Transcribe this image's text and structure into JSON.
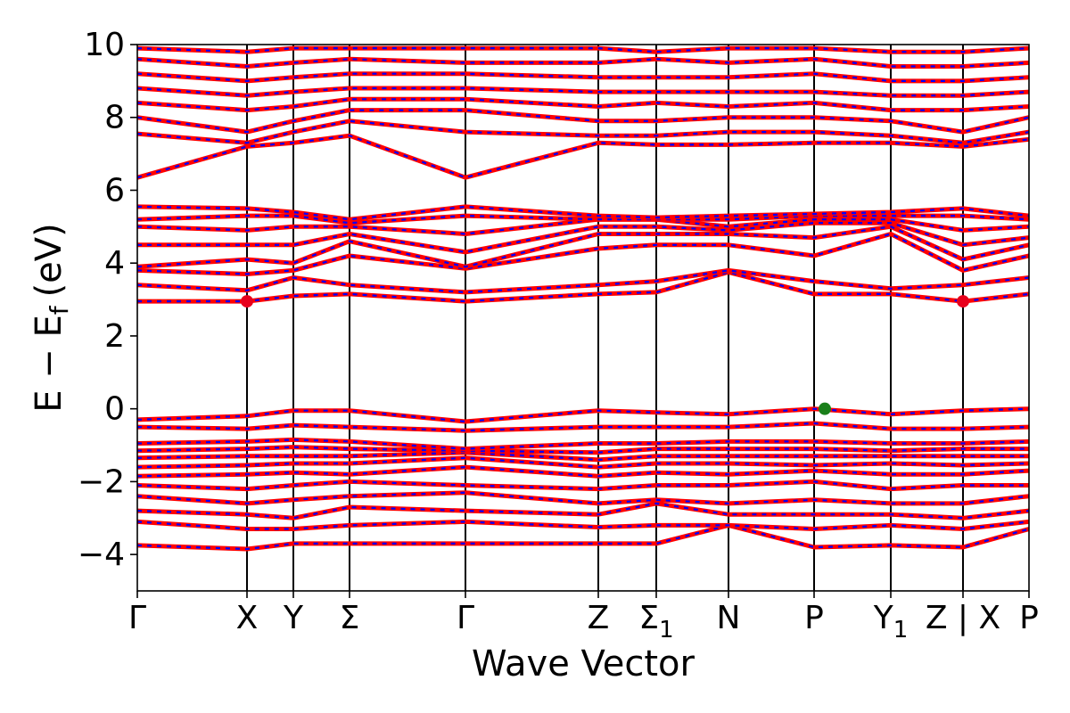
{
  "chart_data": {
    "type": "line",
    "xlabel": "Wave Vector",
    "ylabel": "E − E",
    "ylabel_sub": "f",
    "ylabel_unit": "(eV)",
    "ylim": [
      -5,
      10
    ],
    "yticks": [
      -4,
      -2,
      0,
      2,
      4,
      6,
      8,
      10
    ],
    "ytick_labels": [
      "−4",
      "−2",
      "0",
      "2",
      "4",
      "6",
      "8",
      "10"
    ],
    "xlim": [
      0,
      1
    ],
    "kpoints": [
      {
        "x": 0.0,
        "label": "Γ"
      },
      {
        "x": 0.123,
        "label": "X"
      },
      {
        "x": 0.175,
        "label": "Y"
      },
      {
        "x": 0.238,
        "label": "Σ"
      },
      {
        "x": 0.368,
        "label": "Γ"
      },
      {
        "x": 0.517,
        "label": "Z"
      },
      {
        "x": 0.582,
        "label": "Σ",
        "sub": "1"
      },
      {
        "x": 0.663,
        "label": "N"
      },
      {
        "x": 0.759,
        "label": "P"
      },
      {
        "x": 0.845,
        "label": "Y",
        "sub": "1"
      },
      {
        "x": 0.926,
        "label": "Z | X"
      },
      {
        "x": 1.0,
        "label": "P"
      }
    ],
    "line_colors": {
      "primary": "#ff0000",
      "dash": "#0000ff"
    },
    "markers": [
      {
        "x": 0.123,
        "y": 2.95,
        "color": "#e8001c"
      },
      {
        "x": 0.926,
        "y": 2.95,
        "color": "#e8001c"
      },
      {
        "x": 0.771,
        "y": 0.0,
        "color": "#1a7f1a"
      }
    ],
    "series": [
      {
        "x": [
          0,
          0.123,
          0.175,
          0.238,
          0.368,
          0.517,
          0.582,
          0.663,
          0.759,
          0.845,
          0.926,
          1.0
        ],
        "y": [
          -3.75,
          -3.85,
          -3.7,
          -3.7,
          -3.7,
          -3.7,
          -3.7,
          -3.2,
          -3.8,
          -3.75,
          -3.8,
          -3.3
        ]
      },
      {
        "x": [
          0,
          0.123,
          0.175,
          0.238,
          0.368,
          0.517,
          0.582,
          0.663,
          0.759,
          0.845,
          0.926,
          1.0
        ],
        "y": [
          -3.1,
          -3.3,
          -3.3,
          -3.2,
          -3.1,
          -3.25,
          -3.2,
          -3.2,
          -3.3,
          -3.2,
          -3.3,
          -3.1
        ]
      },
      {
        "x": [
          0,
          0.123,
          0.175,
          0.238,
          0.368,
          0.517,
          0.582,
          0.663,
          0.759,
          0.845,
          0.926,
          1.0
        ],
        "y": [
          -2.8,
          -2.9,
          -3.0,
          -2.7,
          -2.8,
          -2.9,
          -2.6,
          -2.9,
          -2.9,
          -2.9,
          -3.0,
          -2.8
        ]
      },
      {
        "x": [
          0,
          0.123,
          0.175,
          0.238,
          0.368,
          0.517,
          0.582,
          0.663,
          0.759,
          0.845,
          0.926,
          1.0
        ],
        "y": [
          -2.4,
          -2.6,
          -2.5,
          -2.4,
          -2.3,
          -2.6,
          -2.5,
          -2.6,
          -2.5,
          -2.6,
          -2.6,
          -2.4
        ]
      },
      {
        "x": [
          0,
          0.123,
          0.175,
          0.238,
          0.368,
          0.517,
          0.582,
          0.663,
          0.759,
          0.845,
          0.926,
          1.0
        ],
        "y": [
          -2.1,
          -2.2,
          -2.1,
          -2.0,
          -2.1,
          -2.2,
          -2.1,
          -2.1,
          -2.0,
          -2.2,
          -2.1,
          -2.1
        ]
      },
      {
        "x": [
          0,
          0.123,
          0.175,
          0.238,
          0.368,
          0.517,
          0.582,
          0.663,
          0.759,
          0.845,
          0.926,
          1.0
        ],
        "y": [
          -1.85,
          -1.8,
          -1.75,
          -1.8,
          -1.6,
          -1.85,
          -1.75,
          -1.8,
          -1.7,
          -1.8,
          -1.8,
          -1.7
        ]
      },
      {
        "x": [
          0,
          0.123,
          0.175,
          0.238,
          0.368,
          0.517,
          0.582,
          0.663,
          0.759,
          0.845,
          0.926,
          1.0
        ],
        "y": [
          -1.6,
          -1.55,
          -1.5,
          -1.5,
          -1.35,
          -1.6,
          -1.5,
          -1.5,
          -1.55,
          -1.5,
          -1.55,
          -1.5
        ]
      },
      {
        "x": [
          0,
          0.123,
          0.175,
          0.238,
          0.368,
          0.517,
          0.582,
          0.663,
          0.759,
          0.845,
          0.926,
          1.0
        ],
        "y": [
          -1.35,
          -1.3,
          -1.3,
          -1.3,
          -1.2,
          -1.4,
          -1.3,
          -1.3,
          -1.3,
          -1.3,
          -1.3,
          -1.3
        ]
      },
      {
        "x": [
          0,
          0.123,
          0.175,
          0.238,
          0.368,
          0.517,
          0.582,
          0.663,
          0.759,
          0.845,
          0.926,
          1.0
        ],
        "y": [
          -1.15,
          -1.1,
          -1.05,
          -1.1,
          -1.15,
          -1.2,
          -1.1,
          -1.1,
          -1.1,
          -1.15,
          -1.1,
          -1.1
        ]
      },
      {
        "x": [
          0,
          0.123,
          0.175,
          0.238,
          0.368,
          0.517,
          0.582,
          0.663,
          0.759,
          0.845,
          0.926,
          1.0
        ],
        "y": [
          -0.95,
          -0.9,
          -0.85,
          -0.9,
          -1.1,
          -0.95,
          -0.95,
          -0.9,
          -0.9,
          -0.95,
          -0.95,
          -0.9
        ]
      },
      {
        "x": [
          0,
          0.123,
          0.175,
          0.238,
          0.368,
          0.517,
          0.582,
          0.663,
          0.759,
          0.845,
          0.926,
          1.0
        ],
        "y": [
          -0.5,
          -0.55,
          -0.45,
          -0.5,
          -0.6,
          -0.5,
          -0.5,
          -0.5,
          -0.4,
          -0.55,
          -0.55,
          -0.5
        ]
      },
      {
        "x": [
          0,
          0.123,
          0.175,
          0.238,
          0.368,
          0.517,
          0.582,
          0.663,
          0.759,
          0.845,
          0.926,
          1.0
        ],
        "y": [
          -0.3,
          -0.2,
          -0.05,
          -0.05,
          -0.35,
          -0.05,
          -0.1,
          -0.15,
          0.0,
          -0.15,
          -0.05,
          0.0
        ]
      },
      {
        "x": [
          0,
          0.123,
          0.175,
          0.238,
          0.368,
          0.517,
          0.582,
          0.663,
          0.759,
          0.845,
          0.926,
          1.0
        ],
        "y": [
          2.95,
          2.95,
          3.1,
          3.15,
          2.95,
          3.15,
          3.2,
          3.75,
          3.15,
          3.15,
          2.95,
          3.15
        ]
      },
      {
        "x": [
          0,
          0.123,
          0.175,
          0.238,
          0.368,
          0.517,
          0.582,
          0.663,
          0.759,
          0.845,
          0.926,
          1.0
        ],
        "y": [
          3.4,
          3.25,
          3.6,
          3.4,
          3.2,
          3.4,
          3.5,
          3.8,
          3.5,
          3.3,
          3.4,
          3.6
        ]
      },
      {
        "x": [
          0,
          0.123,
          0.175,
          0.238,
          0.368,
          0.517,
          0.582,
          0.663,
          0.759,
          0.845,
          0.926,
          1.0
        ],
        "y": [
          3.8,
          3.7,
          3.8,
          4.2,
          3.85,
          4.4,
          4.5,
          4.5,
          4.2,
          4.8,
          3.8,
          4.2
        ]
      },
      {
        "x": [
          0,
          0.123,
          0.175,
          0.238,
          0.368,
          0.517,
          0.582,
          0.663,
          0.759,
          0.845,
          0.926,
          1.0
        ],
        "y": [
          3.9,
          4.1,
          4.0,
          4.6,
          3.9,
          4.8,
          4.8,
          4.8,
          4.7,
          5.0,
          4.1,
          4.5
        ]
      },
      {
        "x": [
          0,
          0.123,
          0.175,
          0.238,
          0.368,
          0.517,
          0.582,
          0.663,
          0.759,
          0.845,
          0.926,
          1.0
        ],
        "y": [
          4.5,
          4.5,
          4.5,
          4.8,
          4.3,
          5.0,
          5.0,
          4.9,
          5.1,
          5.1,
          4.5,
          4.7
        ]
      },
      {
        "x": [
          0,
          0.123,
          0.175,
          0.238,
          0.368,
          0.517,
          0.582,
          0.663,
          0.759,
          0.845,
          0.926,
          1.0
        ],
        "y": [
          5.0,
          4.9,
          5.0,
          5.0,
          4.8,
          5.2,
          5.2,
          5.0,
          5.2,
          5.2,
          4.9,
          5.0
        ]
      },
      {
        "x": [
          0,
          0.123,
          0.175,
          0.238,
          0.368,
          0.517,
          0.582,
          0.663,
          0.759,
          0.845,
          0.926,
          1.0
        ],
        "y": [
          5.2,
          5.3,
          5.3,
          5.1,
          5.3,
          5.2,
          5.2,
          5.2,
          5.3,
          5.3,
          5.3,
          5.2
        ]
      },
      {
        "x": [
          0,
          0.123,
          0.175,
          0.238,
          0.368,
          0.517,
          0.582,
          0.663,
          0.759,
          0.845,
          0.926,
          1.0
        ],
        "y": [
          5.55,
          5.5,
          5.4,
          5.2,
          5.55,
          5.3,
          5.25,
          5.3,
          5.35,
          5.4,
          5.5,
          5.3
        ]
      },
      {
        "x": [
          0,
          0.123,
          0.175,
          0.238,
          0.368,
          0.517,
          0.582,
          0.663,
          0.759,
          0.845,
          0.926,
          1.0
        ],
        "y": [
          6.35,
          7.2,
          7.3,
          7.5,
          6.35,
          7.3,
          7.25,
          7.25,
          7.3,
          7.3,
          7.2,
          7.4
        ]
      },
      {
        "x": [
          0,
          0.123,
          0.175,
          0.238,
          0.368,
          0.517,
          0.582,
          0.663,
          0.759,
          0.845,
          0.926,
          1.0
        ],
        "y": [
          7.55,
          7.3,
          7.6,
          7.9,
          7.6,
          7.5,
          7.5,
          7.6,
          7.6,
          7.5,
          7.3,
          7.6
        ]
      },
      {
        "x": [
          0,
          0.123,
          0.175,
          0.238,
          0.368,
          0.517,
          0.582,
          0.663,
          0.759,
          0.845,
          0.926,
          1.0
        ],
        "y": [
          8.0,
          7.6,
          7.9,
          8.2,
          8.2,
          7.9,
          7.9,
          8.0,
          8.0,
          7.9,
          7.6,
          8.0
        ]
      },
      {
        "x": [
          0,
          0.123,
          0.175,
          0.238,
          0.368,
          0.517,
          0.582,
          0.663,
          0.759,
          0.845,
          0.926,
          1.0
        ],
        "y": [
          8.4,
          8.2,
          8.3,
          8.5,
          8.5,
          8.3,
          8.4,
          8.3,
          8.4,
          8.2,
          8.2,
          8.3
        ]
      },
      {
        "x": [
          0,
          0.123,
          0.175,
          0.238,
          0.368,
          0.517,
          0.582,
          0.663,
          0.759,
          0.845,
          0.926,
          1.0
        ],
        "y": [
          8.8,
          8.6,
          8.7,
          8.8,
          8.8,
          8.7,
          8.7,
          8.7,
          8.7,
          8.6,
          8.6,
          8.7
        ]
      },
      {
        "x": [
          0,
          0.123,
          0.175,
          0.238,
          0.368,
          0.517,
          0.582,
          0.663,
          0.759,
          0.845,
          0.926,
          1.0
        ],
        "y": [
          9.2,
          9.0,
          9.1,
          9.2,
          9.2,
          9.1,
          9.1,
          9.1,
          9.2,
          9.0,
          9.0,
          9.1
        ]
      },
      {
        "x": [
          0,
          0.123,
          0.175,
          0.238,
          0.368,
          0.517,
          0.582,
          0.663,
          0.759,
          0.845,
          0.926,
          1.0
        ],
        "y": [
          9.6,
          9.4,
          9.5,
          9.6,
          9.5,
          9.5,
          9.6,
          9.5,
          9.6,
          9.4,
          9.4,
          9.5
        ]
      },
      {
        "x": [
          0,
          0.123,
          0.175,
          0.238,
          0.368,
          0.517,
          0.582,
          0.663,
          0.759,
          0.845,
          0.926,
          1.0
        ],
        "y": [
          9.9,
          9.8,
          9.9,
          9.9,
          9.9,
          9.9,
          9.8,
          9.9,
          9.9,
          9.8,
          9.8,
          9.9
        ]
      }
    ]
  }
}
